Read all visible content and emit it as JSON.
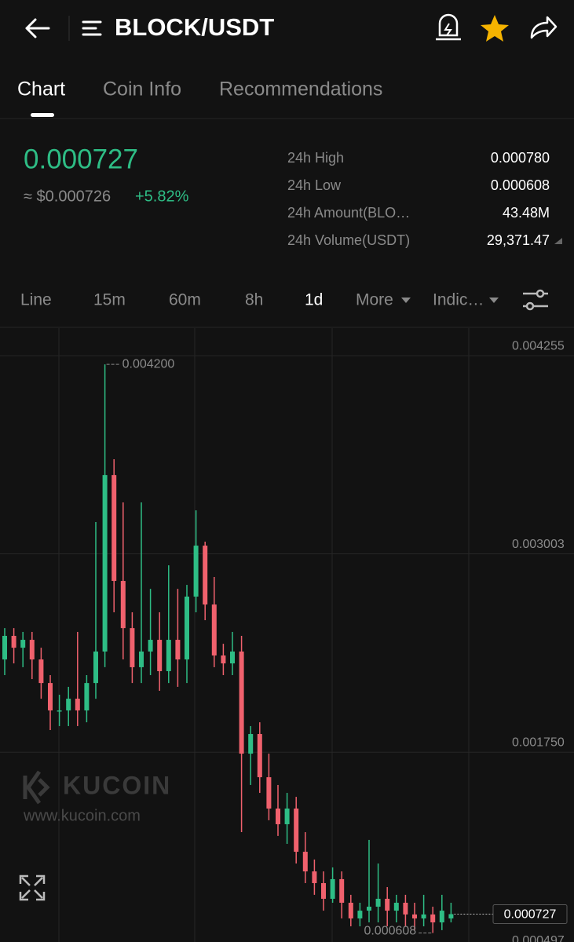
{
  "header": {
    "title": "BLOCK/USDT"
  },
  "tabs": [
    "Chart",
    "Coin Info",
    "Recommendations"
  ],
  "price": {
    "last": "0.000727",
    "fiat": "≈ $0.000726",
    "change": "+5.82%"
  },
  "stats": [
    {
      "label": "24h High",
      "value": "0.000780"
    },
    {
      "label": "24h Low",
      "value": "0.000608"
    },
    {
      "label": "24h Amount(BLO…",
      "value": "43.48M"
    },
    {
      "label": "24h Volume(USDT)",
      "value": "29,371.47"
    }
  ],
  "timeframes": [
    "Line",
    "15m",
    "60m",
    "8h",
    "1d",
    "More",
    "Indic…"
  ],
  "watermark": {
    "brand": "KUCOIN",
    "url": "www.kucoin.com"
  },
  "chart_data": {
    "type": "candlestick",
    "open": [
      0.002336,
      0.002485,
      0.00241,
      0.00246,
      0.002336,
      0.002187,
      0.002014,
      0.002014,
      0.002088,
      0.002014,
      0.002187,
      0.002386,
      0.003501,
      0.002832,
      0.002534,
      0.002287,
      0.002386,
      0.00246,
      0.002262,
      0.00246,
      0.002336,
      0.002733,
      0.003055,
      0.002683,
      0.002361,
      0.002311,
      0.002386,
      0.001741,
      0.001865,
      0.001592,
      0.001394,
      0.001295,
      0.001394,
      0.001121,
      0.000997,
      0.000923,
      0.000824,
      0.000948,
      0.000799,
      0.0007,
      0.000749,
      0.000774,
      0.000824,
      0.000749,
      0.000799,
      0.000725,
      0.0007,
      0.000725,
      0.000675,
      0.0007
    ],
    "high": [
      0.002534,
      0.002534,
      0.00251,
      0.00251,
      0.00241,
      0.002237,
      0.002113,
      0.002163,
      0.00251,
      0.002237,
      0.003204,
      0.0042,
      0.003601,
      0.003328,
      0.002634,
      0.003328,
      0.002782,
      0.002634,
      0.002931,
      0.002782,
      0.002807,
      0.003278,
      0.00308,
      0.002857,
      0.002435,
      0.00251,
      0.002485,
      0.001915,
      0.001939,
      0.001741,
      0.001543,
      0.001493,
      0.001468,
      0.001245,
      0.001072,
      0.000997,
      0.001022,
      0.000997,
      0.000849,
      0.000799,
      0.001196,
      0.001047,
      0.000898,
      0.000849,
      0.000849,
      0.000799,
      0.000849,
      0.000774,
      0.000849,
      0.000799
    ],
    "low": [
      0.002237,
      0.002311,
      0.002287,
      0.002212,
      0.002088,
      0.00189,
      0.001915,
      0.001915,
      0.001915,
      0.001939,
      0.002088,
      0.002287,
      0.002634,
      0.002336,
      0.002187,
      0.002187,
      0.002237,
      0.002138,
      0.002187,
      0.002163,
      0.002187,
      0.002634,
      0.002584,
      0.002287,
      0.002237,
      0.002237,
      0.001245,
      0.001543,
      0.001493,
      0.00132,
      0.001221,
      0.001171,
      0.001047,
      0.000923,
      0.000849,
      0.000749,
      0.000799,
      0.0007,
      0.00065,
      0.00065,
      0.000675,
      0.000675,
      0.00065,
      0.000675,
      0.00065,
      0.000626,
      0.00065,
      0.000608,
      0.000626,
      0.000675
    ],
    "close": [
      0.002485,
      0.00241,
      0.00246,
      0.002336,
      0.002187,
      0.002014,
      0.002014,
      0.002088,
      0.002014,
      0.002187,
      0.002386,
      0.003501,
      0.002832,
      0.002534,
      0.002287,
      0.002386,
      0.00246,
      0.002262,
      0.00246,
      0.002336,
      0.002733,
      0.003055,
      0.002683,
      0.002361,
      0.002311,
      0.002386,
      0.001741,
      0.001865,
      0.001592,
      0.001394,
      0.001295,
      0.001394,
      0.001121,
      0.000997,
      0.000923,
      0.000824,
      0.000948,
      0.000799,
      0.0007,
      0.000749,
      0.000774,
      0.000824,
      0.000749,
      0.000799,
      0.000725,
      0.0007,
      0.000725,
      0.000675,
      0.000749,
      0.000727
    ],
    "up_color": "#2ebd85",
    "down_color": "#f0616d",
    "ylim": [
      0.000551,
      0.004429
    ],
    "yticks": [
      0.004255,
      0.003003,
      {
        "value": 0.00175,
        "label": "0.001750"
      },
      0.000497
    ],
    "grid": true,
    "high_marker": {
      "value": 0.0042,
      "label": "0.004200"
    },
    "low_marker": {
      "value": 0.000608,
      "label": "0.000608"
    },
    "last_price": {
      "value": 0.000727,
      "label": "0.000727"
    }
  }
}
